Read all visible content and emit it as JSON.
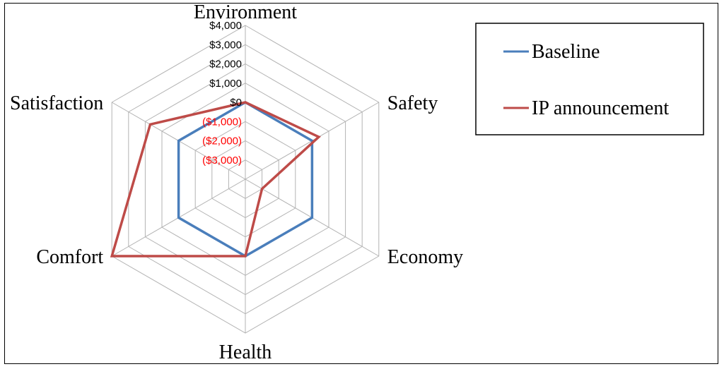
{
  "chart_data": {
    "type": "radar",
    "categories": [
      "Environment",
      "Safety",
      "Economy",
      "Health",
      "Comfort",
      "Satisfaction"
    ],
    "rlim": [
      -4000,
      4000
    ],
    "ticks": [
      {
        "value": 4000,
        "label": "$4,000",
        "color": "#000000"
      },
      {
        "value": 3000,
        "label": "$3,000",
        "color": "#000000"
      },
      {
        "value": 2000,
        "label": "$2,000",
        "color": "#000000"
      },
      {
        "value": 1000,
        "label": "$1,000",
        "color": "#000000"
      },
      {
        "value": 0,
        "label": "$0",
        "color": "#000000"
      },
      {
        "value": -1000,
        "label": "($1,000)",
        "color": "#ff0000"
      },
      {
        "value": -2000,
        "label": "($2,000)",
        "color": "#ff0000"
      },
      {
        "value": -3000,
        "label": "($3,000)",
        "color": "#ff0000"
      }
    ],
    "series": [
      {
        "name": "Baseline",
        "color": "#4a7ebb",
        "values": [
          0,
          0,
          0,
          0,
          0,
          0
        ]
      },
      {
        "name": "IP announcement",
        "color": "#be4b48",
        "values": [
          0,
          400,
          -3000,
          0,
          4000,
          1700
        ]
      }
    ],
    "legend": "right"
  }
}
